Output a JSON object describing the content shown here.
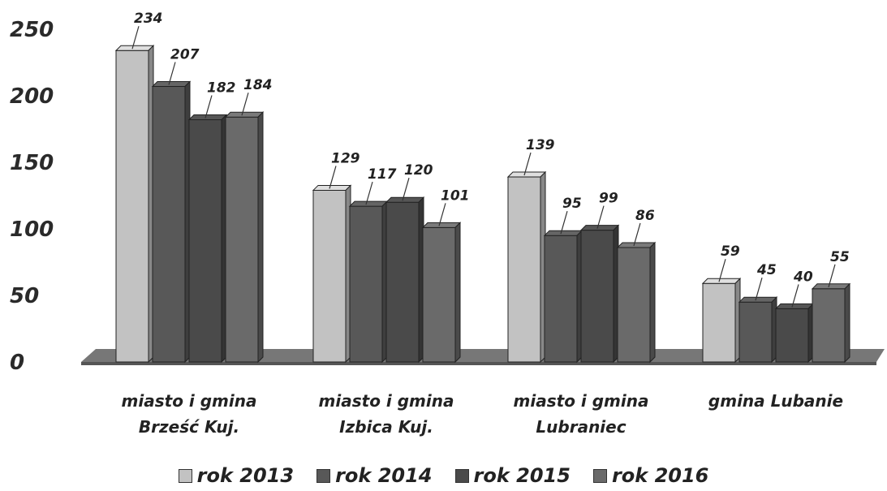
{
  "chart_data": {
    "type": "bar",
    "categories": [
      [
        "miasto  i gmina",
        "Brześć Kuj."
      ],
      [
        "miasto i gmina",
        "Izbica Kuj."
      ],
      [
        "miasto i gmina",
        "Lubraniec"
      ],
      [
        "gmina Lubanie"
      ]
    ],
    "series": [
      {
        "name": "rok 2013",
        "values": [
          234,
          129,
          139,
          59
        ],
        "color": "#c2c2c2"
      },
      {
        "name": "rok 2014",
        "values": [
          207,
          117,
          95,
          45
        ],
        "color": "#585858"
      },
      {
        "name": "rok 2015",
        "values": [
          182,
          120,
          99,
          40
        ],
        "color": "#4a4a4a"
      },
      {
        "name": "rok 2016",
        "values": [
          184,
          101,
          86,
          55
        ],
        "color": "#6a6a6a"
      }
    ],
    "yticks": [
      "0",
      "50",
      "100",
      "150",
      "200",
      "250"
    ],
    "ylim": [
      0,
      250
    ],
    "legend_position": "bottom",
    "style": "3d"
  }
}
